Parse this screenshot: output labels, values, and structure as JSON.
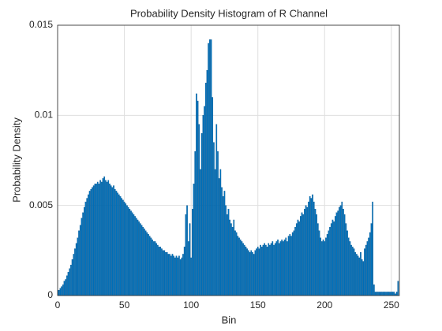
{
  "chart_data": {
    "type": "bar",
    "title": "Probability Density Histogram of R Channel",
    "x_label": "Bin",
    "y_label": "Probability Density",
    "x": [
      0,
      1,
      2,
      3,
      4,
      5,
      6,
      7,
      8,
      9,
      10,
      11,
      12,
      13,
      14,
      15,
      16,
      17,
      18,
      19,
      20,
      21,
      22,
      23,
      24,
      25,
      26,
      27,
      28,
      29,
      30,
      31,
      32,
      33,
      34,
      35,
      36,
      37,
      38,
      39,
      40,
      41,
      42,
      43,
      44,
      45,
      46,
      47,
      48,
      49,
      50,
      51,
      52,
      53,
      54,
      55,
      56,
      57,
      58,
      59,
      60,
      61,
      62,
      63,
      64,
      65,
      66,
      67,
      68,
      69,
      70,
      71,
      72,
      73,
      74,
      75,
      76,
      77,
      78,
      79,
      80,
      81,
      82,
      83,
      84,
      85,
      86,
      87,
      88,
      89,
      90,
      91,
      92,
      93,
      94,
      95,
      96,
      97,
      98,
      99,
      100,
      101,
      102,
      103,
      104,
      105,
      106,
      107,
      108,
      109,
      110,
      111,
      112,
      113,
      114,
      115,
      116,
      117,
      118,
      119,
      120,
      121,
      122,
      123,
      124,
      125,
      126,
      127,
      128,
      129,
      130,
      131,
      132,
      133,
      134,
      135,
      136,
      137,
      138,
      139,
      140,
      141,
      142,
      143,
      144,
      145,
      146,
      147,
      148,
      149,
      150,
      151,
      152,
      153,
      154,
      155,
      156,
      157,
      158,
      159,
      160,
      161,
      162,
      163,
      164,
      165,
      166,
      167,
      168,
      169,
      170,
      171,
      172,
      173,
      174,
      175,
      176,
      177,
      178,
      179,
      180,
      181,
      182,
      183,
      184,
      185,
      186,
      187,
      188,
      189,
      190,
      191,
      192,
      193,
      194,
      195,
      196,
      197,
      198,
      199,
      200,
      201,
      202,
      203,
      204,
      205,
      206,
      207,
      208,
      209,
      210,
      211,
      212,
      213,
      214,
      215,
      216,
      217,
      218,
      219,
      220,
      221,
      222,
      223,
      224,
      225,
      226,
      227,
      228,
      229,
      230,
      231,
      232,
      233,
      234,
      235,
      236,
      237,
      238,
      239,
      240,
      241,
      242,
      243,
      244,
      245,
      246,
      247,
      248,
      249,
      250,
      251,
      252,
      253,
      254,
      255
    ],
    "values": [
      0.0003,
      0.0003,
      0.0004,
      0.0005,
      0.0006,
      0.0008,
      0.0009,
      0.0011,
      0.0013,
      0.0015,
      0.0017,
      0.002,
      0.0023,
      0.0026,
      0.0029,
      0.0032,
      0.0036,
      0.0039,
      0.0043,
      0.0046,
      0.0049,
      0.0052,
      0.0054,
      0.0056,
      0.0058,
      0.0059,
      0.006,
      0.0061,
      0.0062,
      0.0062,
      0.0063,
      0.0062,
      0.0064,
      0.0063,
      0.0065,
      0.0066,
      0.0064,
      0.0063,
      0.0064,
      0.0062,
      0.0061,
      0.006,
      0.0061,
      0.0059,
      0.0058,
      0.0057,
      0.0056,
      0.0055,
      0.0054,
      0.0053,
      0.0052,
      0.0051,
      0.005,
      0.0049,
      0.0048,
      0.0047,
      0.0046,
      0.0045,
      0.0044,
      0.0043,
      0.0042,
      0.0041,
      0.004,
      0.0039,
      0.0038,
      0.0037,
      0.0036,
      0.0035,
      0.0034,
      0.0033,
      0.0032,
      0.0031,
      0.003,
      0.003,
      0.0029,
      0.0028,
      0.0027,
      0.0027,
      0.0026,
      0.0025,
      0.0025,
      0.0024,
      0.0024,
      0.0023,
      0.0023,
      0.0022,
      0.0023,
      0.0022,
      0.0021,
      0.0022,
      0.0021,
      0.0022,
      0.002,
      0.0021,
      0.0023,
      0.0027,
      0.0045,
      0.005,
      0.003,
      0.004,
      0.0021,
      0.0048,
      0.0062,
      0.008,
      0.0112,
      0.0108,
      0.0095,
      0.007,
      0.009,
      0.01,
      0.0105,
      0.0118,
      0.0125,
      0.014,
      0.0142,
      0.0142,
      0.011,
      0.0085,
      0.007,
      0.0095,
      0.008,
      0.0065,
      0.007,
      0.006,
      0.0055,
      0.0058,
      0.005,
      0.0045,
      0.0048,
      0.0042,
      0.004,
      0.0038,
      0.0042,
      0.0036,
      0.0035,
      0.0033,
      0.0032,
      0.0031,
      0.003,
      0.0029,
      0.0028,
      0.0027,
      0.0026,
      0.0025,
      0.0024,
      0.0025,
      0.0024,
      0.0023,
      0.0025,
      0.0026,
      0.0027,
      0.0026,
      0.0028,
      0.0027,
      0.0028,
      0.0029,
      0.0028,
      0.0027,
      0.0029,
      0.0028,
      0.0029,
      0.003,
      0.0028,
      0.0029,
      0.003,
      0.0031,
      0.0029,
      0.003,
      0.0031,
      0.003,
      0.0031,
      0.0032,
      0.003,
      0.0033,
      0.0034,
      0.0033,
      0.0035,
      0.0036,
      0.0038,
      0.004,
      0.0042,
      0.0041,
      0.0044,
      0.0046,
      0.0045,
      0.0048,
      0.005,
      0.0049,
      0.0052,
      0.0055,
      0.0054,
      0.0056,
      0.0052,
      0.0048,
      0.0045,
      0.004,
      0.0036,
      0.0032,
      0.003,
      0.0031,
      0.003,
      0.0032,
      0.0034,
      0.0036,
      0.0038,
      0.004,
      0.0042,
      0.0041,
      0.0044,
      0.0046,
      0.0047,
      0.0049,
      0.005,
      0.0052,
      0.0048,
      0.0045,
      0.004,
      0.0036,
      0.0032,
      0.003,
      0.0028,
      0.0027,
      0.0026,
      0.0024,
      0.0023,
      0.0022,
      0.0021,
      0.0024,
      0.002,
      0.0019,
      0.0026,
      0.0028,
      0.003,
      0.0032,
      0.0035,
      0.004,
      0.0052,
      0.0006,
      0.0002,
      0.0002,
      0.0002,
      0.0002,
      0.0002,
      0.0002,
      0.0002,
      0.0002,
      0.0002,
      0.0002,
      0.0002,
      0.0002,
      0.0002,
      0.0002,
      0.0002,
      0.0001,
      0.0002,
      0.0008
    ],
    "color": "#0072bd",
    "xlim": [
      0,
      256
    ],
    "xticks": [
      0,
      50,
      100,
      150,
      200,
      250
    ],
    "ylim": [
      0,
      0.015
    ],
    "yticks": [
      0,
      0.005,
      0.01,
      0.015
    ],
    "grid": true
  }
}
